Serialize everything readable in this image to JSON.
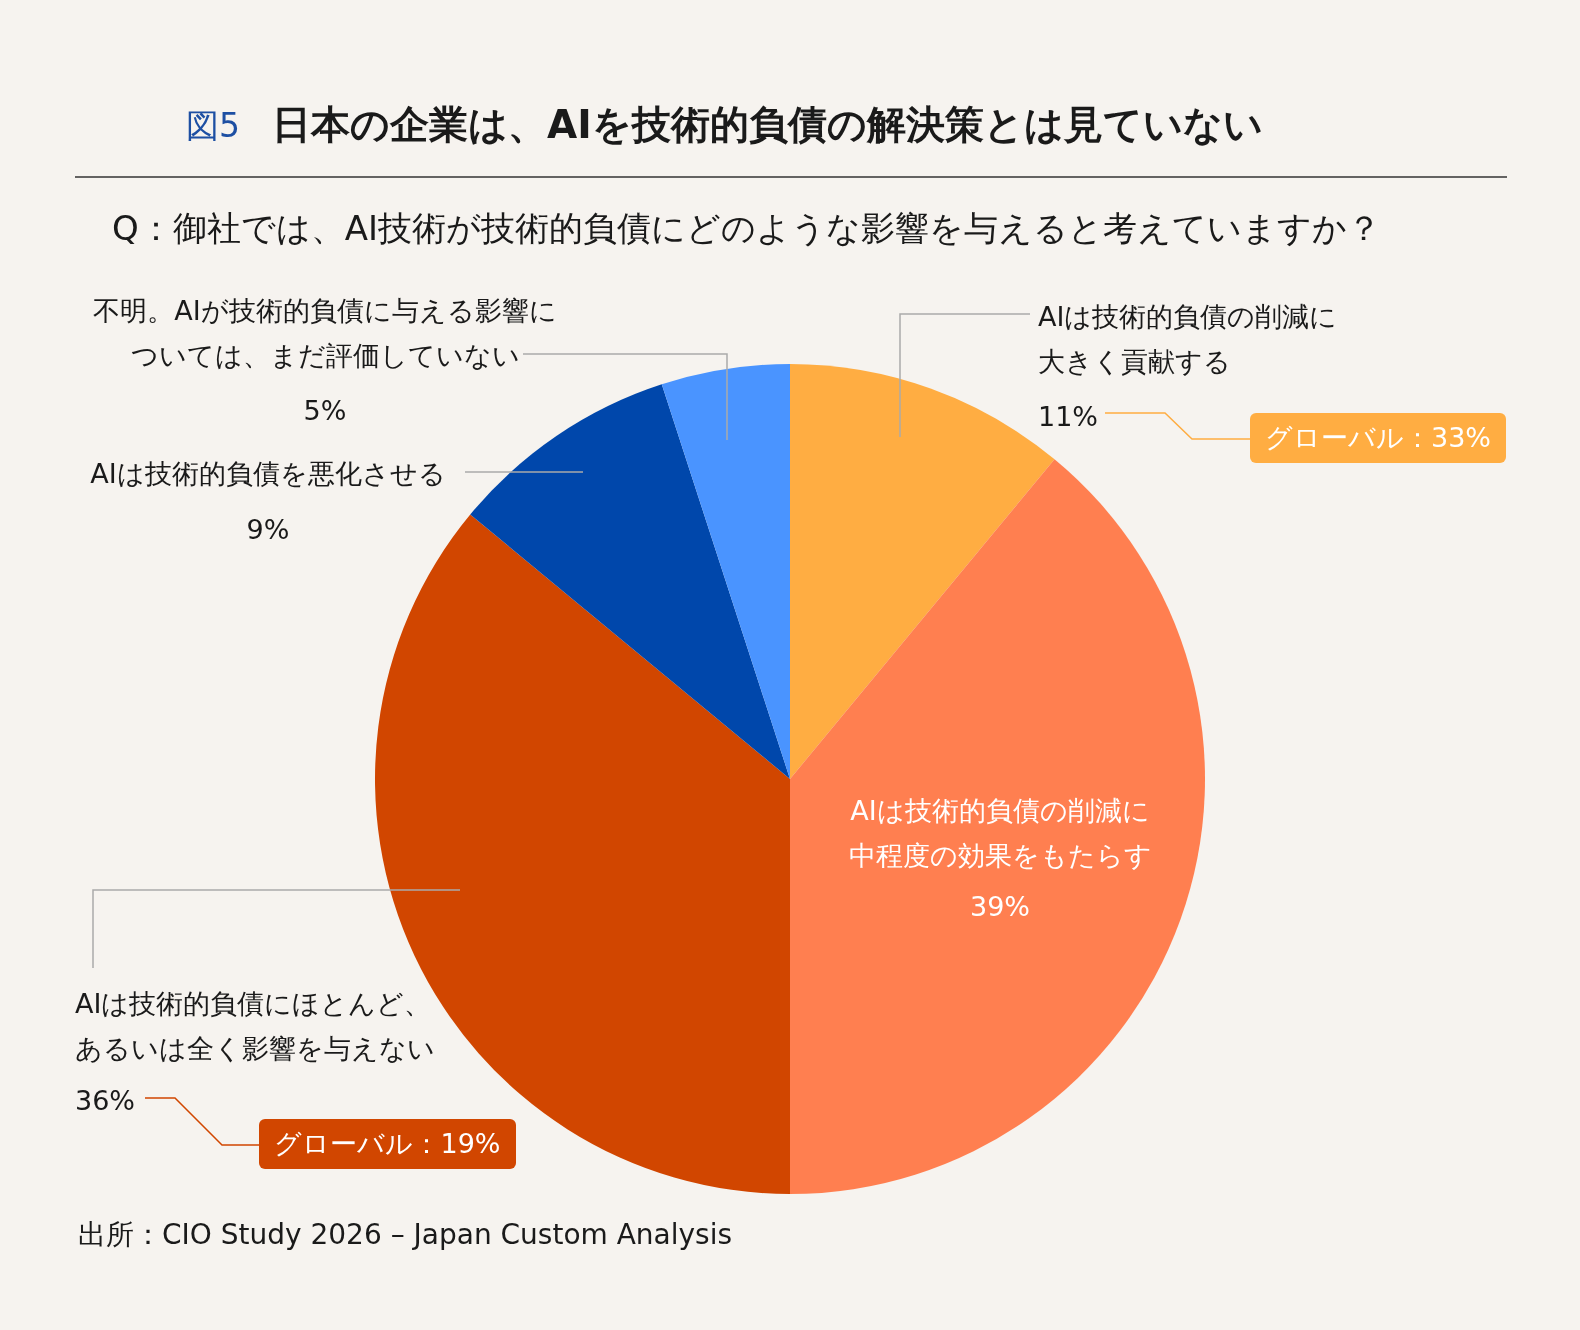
{
  "chart_data": {
    "type": "pie",
    "title": "日本の企業は、AIを技術的負債の解決策とは見ていない",
    "subtitle": "Q：御社では、AI技術が技術的負債にどのような影響を与えると考えていますか？",
    "categories": [
      "AIは技術的負債の削減に大きく貢献する",
      "AIは技術的負債の削減に中程度の効果をもたらす",
      "AIは技術的負債にほとんど、あるいは全く影響を与えない",
      "AIは技術的負債を悪化させる",
      "不明。AIが技術的負債に与える影響については、まだ評価していない"
    ],
    "values": [
      11,
      39,
      36,
      9,
      5
    ],
    "value_labels": [
      "11%",
      "39%",
      "36%",
      "9%",
      "5%"
    ],
    "colors": [
      "#ffad42",
      "#ff7f50",
      "#d14600",
      "#0047ab",
      "#4a94ff"
    ],
    "annotations": [
      "図5",
      "グローバル：33%",
      "グローバル：19%",
      "出所：CIO Study 2026 – Japan Custom Analysis"
    ]
  }
}
